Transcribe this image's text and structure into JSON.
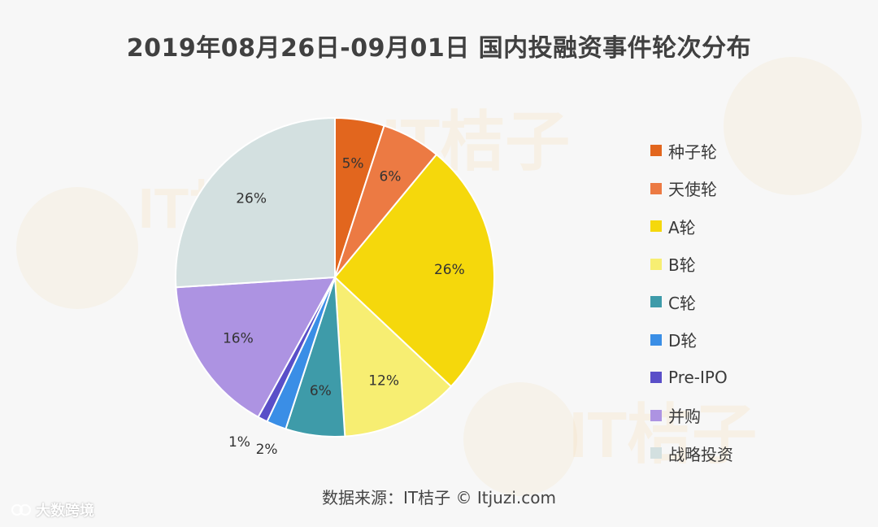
{
  "title": "2019年08月26日-09月01日 国内投融资事件轮次分布",
  "source": "数据来源：IT桔子 © Itjuzi.com",
  "brand": "大数跨境",
  "watermark": "IT桔子",
  "chart_data": {
    "type": "pie",
    "title": "2019年08月26日-09月01日 国内投融资事件轮次分布",
    "start": "12 o'clock",
    "direction": "clockwise",
    "slices": [
      {
        "label": "种子轮",
        "value": 5,
        "display": "5%",
        "color": "#E2661E"
      },
      {
        "label": "天使轮",
        "value": 6,
        "display": "6%",
        "color": "#EC7A43"
      },
      {
        "label": "A轮",
        "value": 26,
        "display": "26%",
        "color": "#F5D80C"
      },
      {
        "label": "B轮",
        "value": 12,
        "display": "12%",
        "color": "#F7EE72"
      },
      {
        "label": "C轮",
        "value": 6,
        "display": "6%",
        "color": "#3E9BA9"
      },
      {
        "label": "D轮",
        "value": 2,
        "display": "2%",
        "color": "#3A8EE6"
      },
      {
        "label": "Pre-IPO",
        "value": 1,
        "display": "1%",
        "color": "#5A4FC8"
      },
      {
        "label": "并购",
        "value": 16,
        "display": "16%",
        "color": "#AD93E2"
      },
      {
        "label": "战略投资",
        "value": 26,
        "display": "26%",
        "color": "#D3E0E0"
      }
    ],
    "legend_position": "right"
  }
}
